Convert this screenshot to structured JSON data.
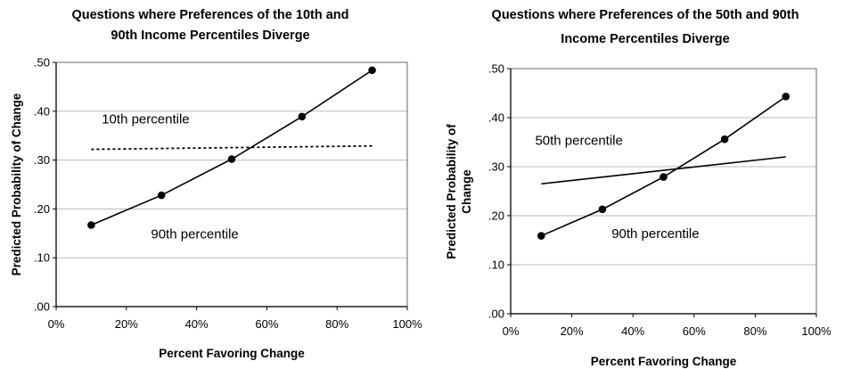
{
  "chart_data": [
    {
      "type": "line",
      "title_lines": [
        "Questions where Preferences of the 10th and",
        "90th Income Percentiles Diverge"
      ],
      "xlabel": "Percent Favoring Change",
      "ylabel_lines": [
        "Predicted Probability of Change"
      ],
      "xlim": [
        0,
        1
      ],
      "ylim": [
        0,
        0.5
      ],
      "x_ticks": [
        "0%",
        "20%",
        "40%",
        "60%",
        "80%",
        "100%"
      ],
      "y_ticks": [
        ".00",
        ".10",
        ".20",
        ".30",
        ".40",
        ".50"
      ],
      "grid": "horizontal",
      "series": [
        {
          "name": "10th percentile",
          "style": "dotted",
          "markers": false,
          "x": [
            0.1,
            0.9
          ],
          "y": [
            0.322,
            0.329
          ]
        },
        {
          "name": "90th percentile",
          "style": "solid",
          "markers": true,
          "x": [
            0.1,
            0.3,
            0.5,
            0.7,
            0.9
          ],
          "y": [
            0.167,
            0.228,
            0.302,
            0.389,
            0.484
          ]
        }
      ],
      "annotations": [
        {
          "text": "10th percentile",
          "x": 0.13,
          "y": 0.375
        },
        {
          "text": "90th percentile",
          "x": 0.27,
          "y": 0.14
        }
      ]
    },
    {
      "type": "line",
      "title_lines": [
        "Questions where Preferences of the 50th and 90th",
        "Income Percentiles Diverge"
      ],
      "xlabel": "Percent Favoring Change",
      "ylabel_lines": [
        "Predicted Probability of",
        "Change"
      ],
      "xlim": [
        0,
        1
      ],
      "ylim": [
        0,
        0.5
      ],
      "x_ticks": [
        "0%",
        "20%",
        "40%",
        "60%",
        "80%",
        "100%"
      ],
      "y_ticks": [
        ".00",
        ".10",
        ".20",
        ".30",
        ".40",
        ".50"
      ],
      "grid": "horizontal",
      "series": [
        {
          "name": "50th percentile",
          "style": "solid",
          "markers": false,
          "x": [
            0.1,
            0.9
          ],
          "y": [
            0.265,
            0.32
          ]
        },
        {
          "name": "90th percentile",
          "style": "solid",
          "markers": true,
          "x": [
            0.1,
            0.3,
            0.5,
            0.7,
            0.9
          ],
          "y": [
            0.159,
            0.213,
            0.279,
            0.356,
            0.443
          ]
        }
      ],
      "annotations": [
        {
          "text": "50th percentile",
          "x": 0.08,
          "y": 0.345
        },
        {
          "text": "90th percentile",
          "x": 0.33,
          "y": 0.155
        }
      ]
    }
  ]
}
